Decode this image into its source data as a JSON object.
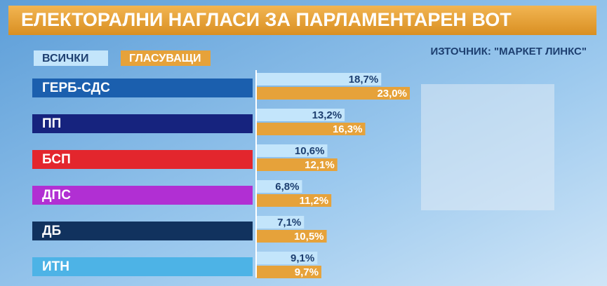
{
  "chart_data": {
    "type": "bar",
    "orientation": "horizontal",
    "title": "ЕЛЕКТОРАЛНИ НАГЛАСИ ЗА ПАРЛАМЕНТАРЕН ВОТ",
    "source": "ИЗТОЧНИК: \"МАРКЕТ ЛИНКС\"",
    "categories": [
      "ГЕРБ-СДС",
      "ПП",
      "БСП",
      "ДПС",
      "ДБ",
      "ИТН"
    ],
    "category_colors": [
      "#1b5fae",
      "#16237e",
      "#e3262d",
      "#b12fd3",
      "#11325e",
      "#4db3e6"
    ],
    "series": [
      {
        "name": "ВСИЧКИ",
        "color": "#c3e5fb",
        "values": [
          18.7,
          13.2,
          10.6,
          6.8,
          7.1,
          9.1
        ],
        "value_labels": [
          "18,7%",
          "13,2%",
          "10,6%",
          "6,8%",
          "7,1%",
          "9,1%"
        ]
      },
      {
        "name": "ГЛАСУВАЩИ",
        "color": "#e6a23a",
        "values": [
          23.0,
          16.3,
          12.1,
          11.2,
          10.5,
          9.7
        ],
        "value_labels": [
          "23,0%",
          "16,3%",
          "12,1%",
          "11,2%",
          "10,5%",
          "9,7%"
        ]
      }
    ]
  }
}
